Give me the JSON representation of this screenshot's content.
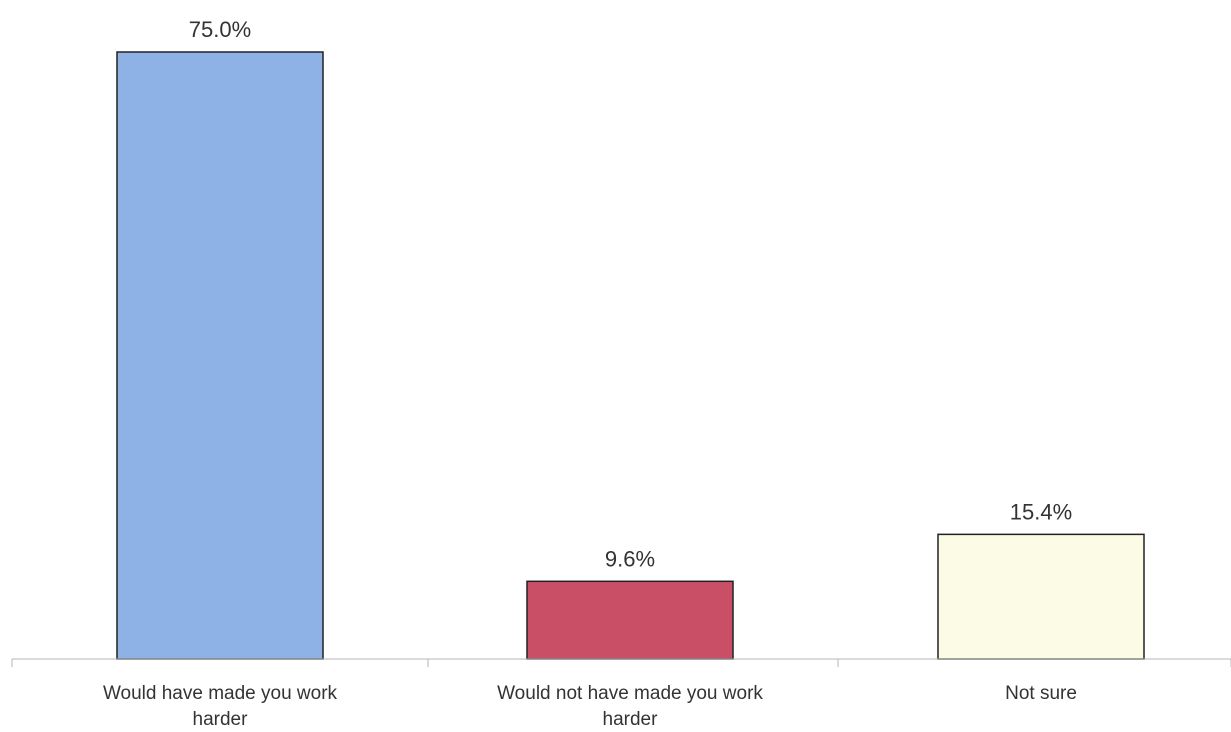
{
  "chart_data": {
    "type": "bar",
    "categories": [
      "Would have made you work harder",
      "Would not have made you work harder",
      "Not sure"
    ],
    "category_lines": [
      [
        "Would have made you work",
        "harder"
      ],
      [
        "Would not have made you work",
        "harder"
      ],
      [
        "Not sure"
      ]
    ],
    "values": [
      75.0,
      9.6,
      15.4
    ],
    "data_labels": [
      "75.0%",
      "9.6%",
      "15.4%"
    ],
    "title": "",
    "xlabel": "",
    "ylabel": "",
    "ylim": [
      0,
      75
    ],
    "grid": false,
    "legend": "none",
    "colors": [
      "#8fb2e6",
      "#c94f67",
      "#fcfbe6"
    ],
    "outline_color": "#222222",
    "axis_color": "#b5b5b5"
  }
}
